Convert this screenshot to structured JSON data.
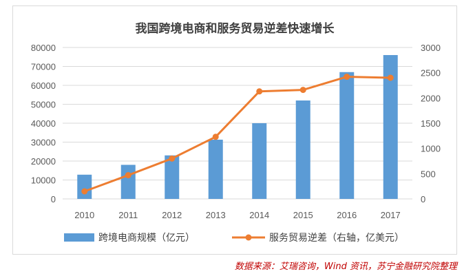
{
  "chart_data": {
    "type": "bar+line",
    "title": "我国跨境电商和服务贸易逆差快速增长",
    "categories": [
      "2010",
      "2011",
      "2012",
      "2013",
      "2014",
      "2015",
      "2016",
      "2017"
    ],
    "series": [
      {
        "name": "跨境电商规模（亿元）",
        "type": "bar",
        "axis": "left",
        "color": "#5b9bd5",
        "values": [
          12800,
          18000,
          23000,
          31300,
          40000,
          52000,
          67000,
          76000
        ]
      },
      {
        "name": "服务贸易逆差（右轴，亿美元）",
        "type": "line",
        "axis": "right",
        "color": "#ed7d31",
        "values": [
          150,
          470,
          800,
          1230,
          2130,
          2160,
          2420,
          2400
        ]
      }
    ],
    "y_left": {
      "min": 0,
      "max": 80000,
      "ticks": [
        "0",
        "10000",
        "20000",
        "30000",
        "40000",
        "50000",
        "60000",
        "70000",
        "80000"
      ]
    },
    "y_right": {
      "min": 0,
      "max": 3000,
      "ticks": [
        "0",
        "500",
        "1000",
        "1500",
        "2000",
        "2500",
        "3000"
      ]
    },
    "grid": true,
    "legend_position": "bottom"
  },
  "source_note": "数据来源：艾瑞咨询，Wind 资讯，苏宁金融研究院整理"
}
